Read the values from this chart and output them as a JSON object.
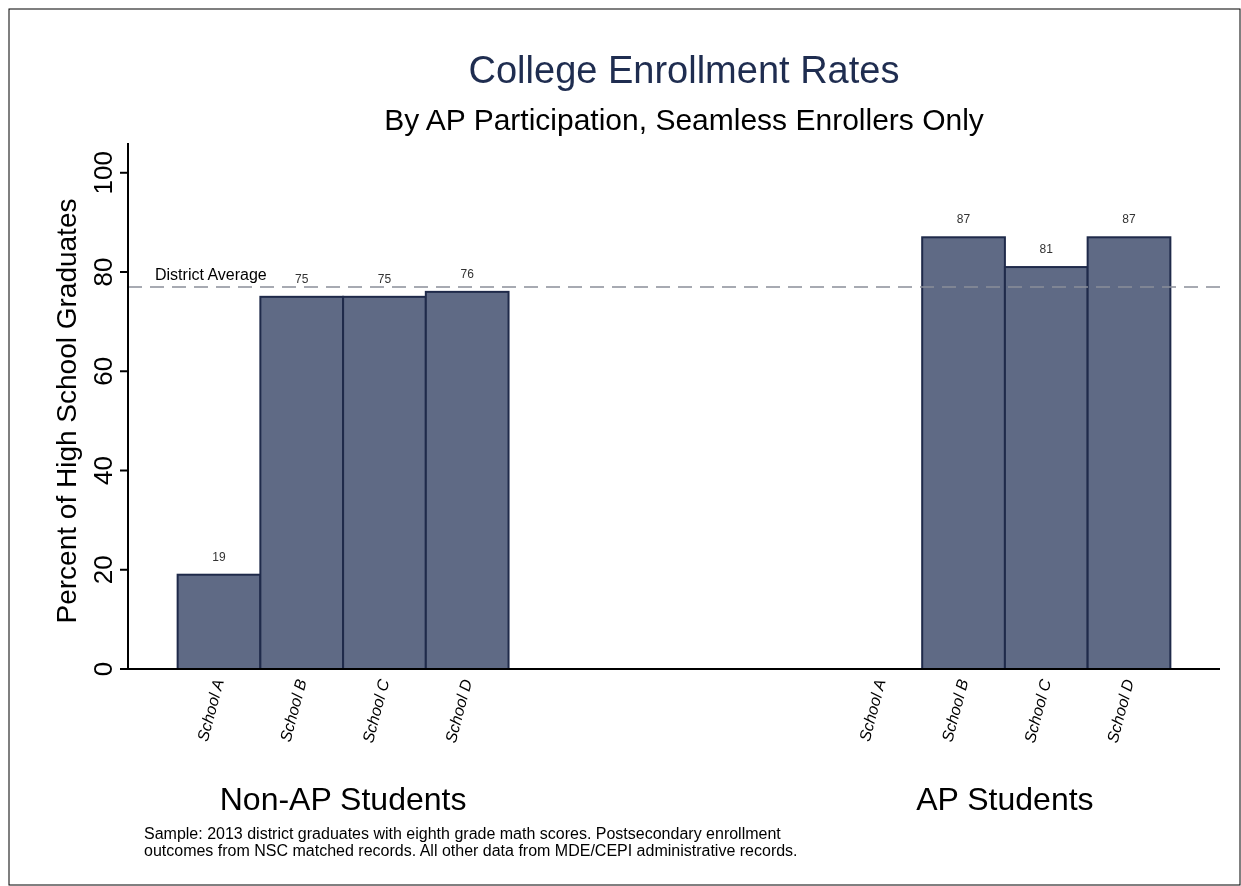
{
  "chart_data": {
    "type": "bar",
    "title": "College Enrollment Rates",
    "subtitle": "By AP Participation, Seamless Enrollers Only",
    "ylabel": "Percent of High School Graduates",
    "categories": [
      "School A",
      "School B",
      "School C",
      "School D",
      null,
      null,
      null,
      null,
      "School A",
      "School B",
      "School C",
      "School D"
    ],
    "values": [
      19,
      75,
      75,
      76,
      null,
      null,
      null,
      null,
      null,
      87,
      81,
      87
    ],
    "color": "#5f6a85",
    "ylim": [
      0,
      106
    ],
    "yticks": [
      0,
      20,
      40,
      60,
      80,
      100
    ],
    "grid": false,
    "data_labels": true,
    "ref_lines": [
      {
        "axis": "y",
        "value": 77,
        "label": "District Average",
        "color": "#8a8e99",
        "line_style": "dashed"
      }
    ],
    "annotations": [
      "Non-AP Students",
      "AP Students",
      "Sample: 2013 district graduates with eighth grade math scores. Postsecondary enrollment outcomes from NSC matched records. All other data from MDE/CEPI administrative records."
    ]
  }
}
